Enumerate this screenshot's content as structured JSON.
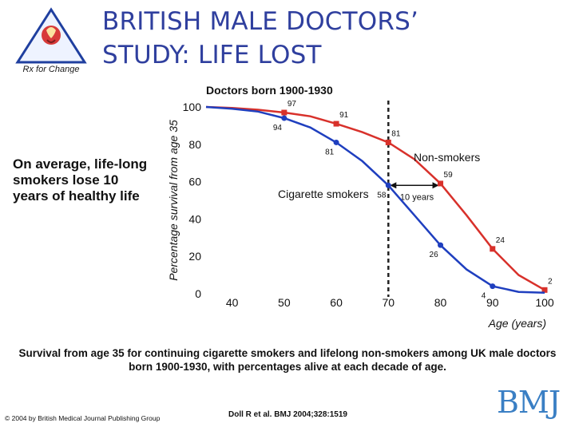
{
  "slide": {
    "title_line1": "BRITISH MALE DOCTORS’",
    "title_line2": "STUDY: LIFE LOST",
    "side_note": "On average, life-long smokers lose 10 years of healthy life",
    "caption": "Survival from age 35 for continuing cigarette smokers and lifelong non-smokers among UK male doctors born 1900-1930, with percentages alive at each decade of age.",
    "copyright": "© 2004 by British Medical Journal Publishing Group",
    "citation": "Doll R et al. BMJ 2004;328:1519",
    "publisher_logo": "BMJ",
    "logo_text": "Rx for Change"
  },
  "colors": {
    "title": "#2f3f9e",
    "non_smokers": "#d8312b",
    "smokers": "#1f3fbf",
    "chart_bg": "#ffffff",
    "bmj": "#3a7fc4"
  },
  "chart_data": {
    "type": "line",
    "title": "Doctors born 1900-1930",
    "xlabel": "Age (years)",
    "ylabel": "Percentage survival from age 35",
    "xlim": [
      35,
      100
    ],
    "ylim": [
      0,
      100
    ],
    "x_ticks": [
      40,
      50,
      60,
      70,
      80,
      90,
      100
    ],
    "y_ticks": [
      0,
      20,
      40,
      60,
      80,
      100
    ],
    "reference_line_x": 70,
    "annotation": "10 years",
    "series": [
      {
        "name": "Non-smokers",
        "color": "#d8312b",
        "x": [
          35,
          40,
          45,
          50,
          55,
          60,
          65,
          70,
          75,
          80,
          85,
          90,
          95,
          100
        ],
        "y": [
          100,
          99.5,
          98.5,
          97,
          95,
          91,
          86.5,
          81,
          72,
          59,
          42,
          24,
          10,
          2
        ],
        "labeled_points": [
          {
            "x": 50,
            "y": 97,
            "label": "97"
          },
          {
            "x": 60,
            "y": 91,
            "label": "91"
          },
          {
            "x": 70,
            "y": 81,
            "label": "81"
          },
          {
            "x": 80,
            "y": 59,
            "label": "59"
          },
          {
            "x": 90,
            "y": 24,
            "label": "24"
          },
          {
            "x": 100,
            "y": 2,
            "label": "2"
          }
        ]
      },
      {
        "name": "Cigarette smokers",
        "color": "#1f3fbf",
        "x": [
          35,
          40,
          45,
          50,
          55,
          60,
          65,
          70,
          75,
          80,
          85,
          90,
          95,
          100
        ],
        "y": [
          100,
          99,
          97.5,
          94,
          89,
          81,
          71,
          58,
          42,
          26,
          13,
          4,
          1,
          0.5
        ],
        "labeled_points": [
          {
            "x": 50,
            "y": 94,
            "label": "94"
          },
          {
            "x": 60,
            "y": 81,
            "label": "81"
          },
          {
            "x": 70,
            "y": 58,
            "label": "58"
          },
          {
            "x": 80,
            "y": 26,
            "label": "26"
          },
          {
            "x": 90,
            "y": 4,
            "label": "4"
          }
        ]
      }
    ]
  }
}
